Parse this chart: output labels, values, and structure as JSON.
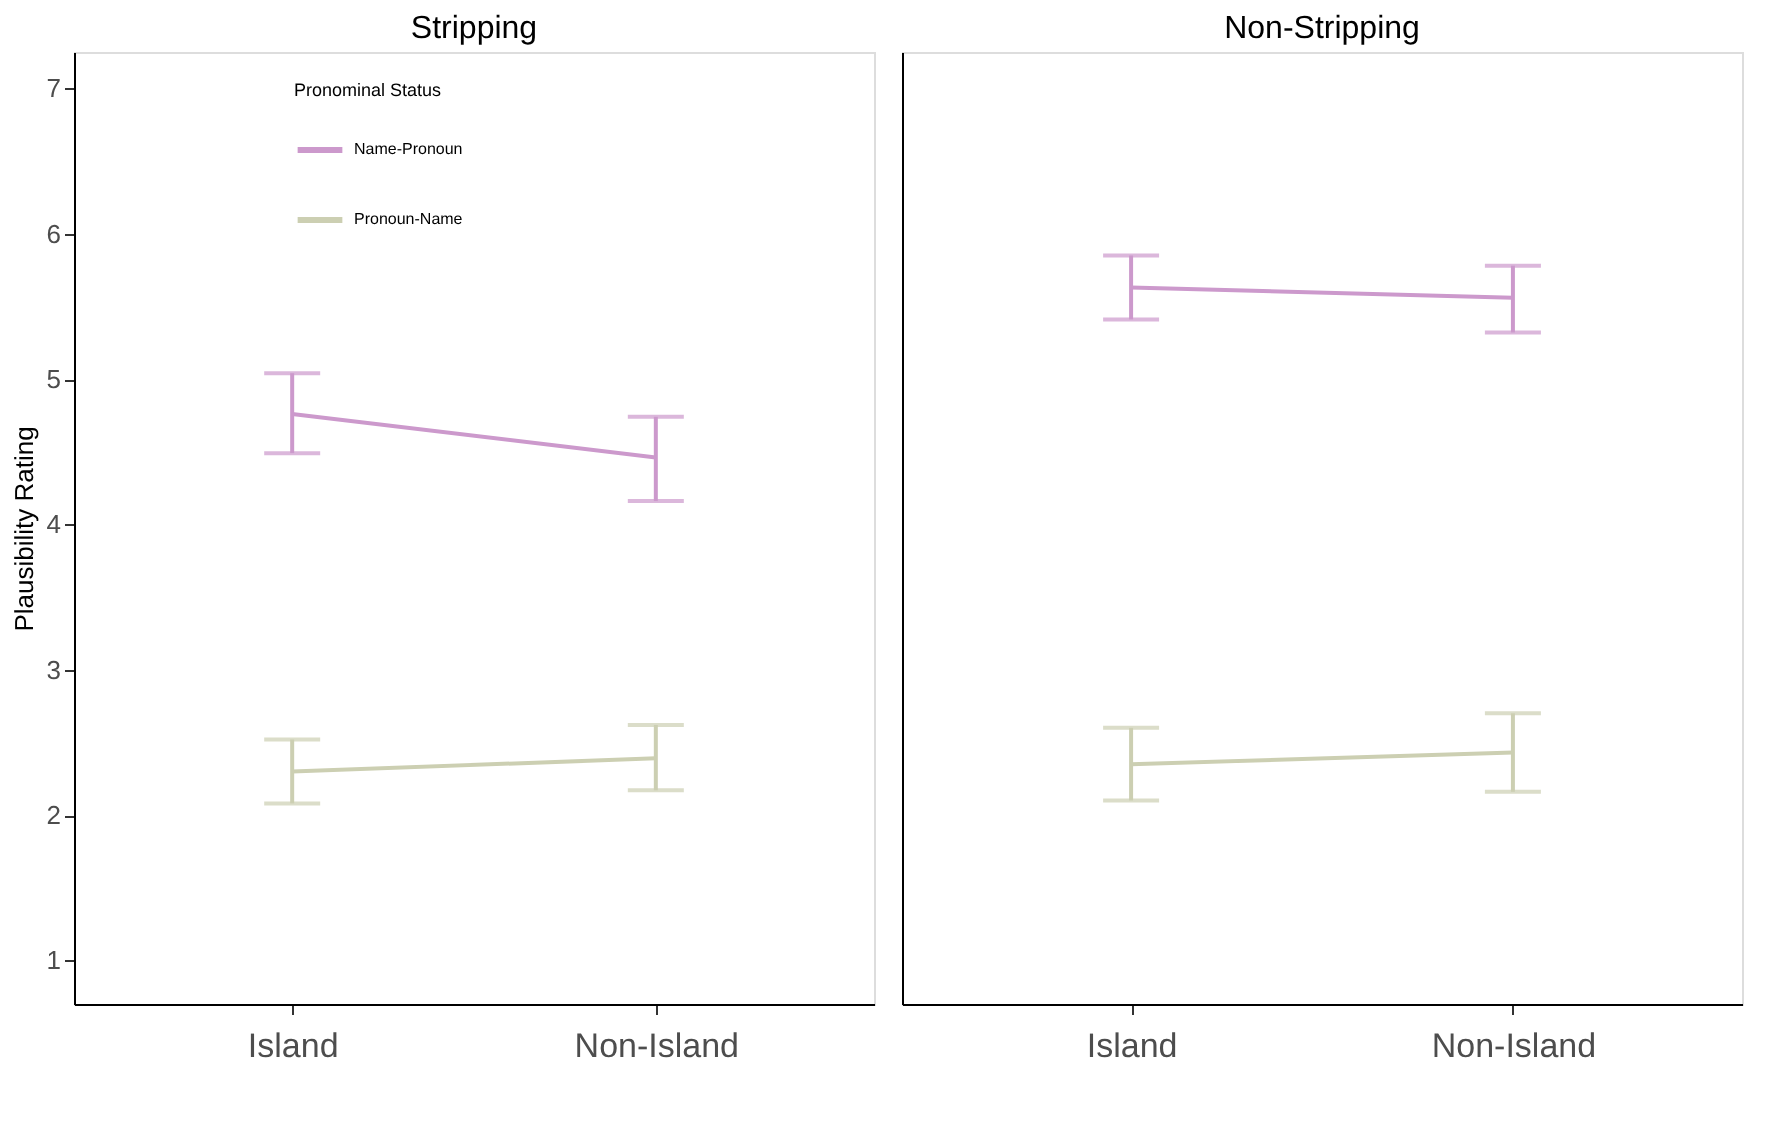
{
  "chart_data": [
    {
      "type": "line",
      "title": "Stripping",
      "ylabel": "Plausibility Rating",
      "legend_title": "Pronominal Status",
      "legend": "top left",
      "categories": [
        "Island",
        "Non-Island"
      ],
      "ylim": [
        0.7,
        7.25
      ],
      "yticks": [
        1,
        2,
        3,
        4,
        5,
        6,
        7
      ],
      "grid": false,
      "series": [
        {
          "name": "Name-Pronoun",
          "color": "#cc99cc",
          "values": [
            4.76,
            4.46
          ],
          "errors": [
            [
              4.49,
              5.04
            ],
            [
              4.16,
              4.74
            ]
          ]
        },
        {
          "name": "Pronoun-Name",
          "color": "#cccfb2",
          "values": [
            2.3,
            2.39
          ],
          "errors": [
            [
              2.08,
              2.52
            ],
            [
              2.17,
              2.62
            ]
          ]
        }
      ]
    },
    {
      "type": "line",
      "title": "Non-Stripping",
      "categories": [
        "Island",
        "Non-Island"
      ],
      "ylim": [
        0.7,
        7.25
      ],
      "yticks": [
        1,
        2,
        3,
        4,
        5,
        6,
        7
      ],
      "tick_labels": "x",
      "grid": false,
      "series": [
        {
          "color": "#cc99cc",
          "values": [
            5.63,
            5.56
          ],
          "errors": [
            [
              5.41,
              5.85
            ],
            [
              5.32,
              5.78
            ]
          ]
        },
        {
          "color": "#cccfb2",
          "values": [
            2.35,
            2.43
          ],
          "errors": [
            [
              2.1,
              2.6
            ],
            [
              2.16,
              2.7
            ]
          ]
        }
      ]
    }
  ]
}
